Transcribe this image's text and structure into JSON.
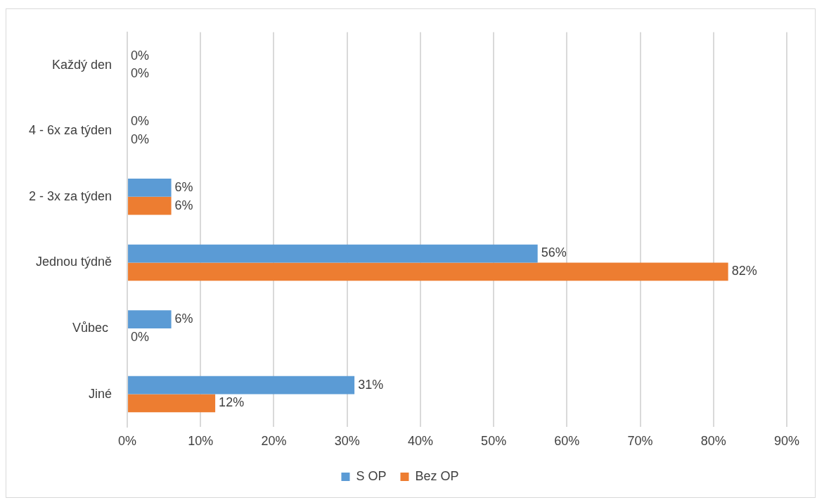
{
  "chart_data": {
    "type": "bar",
    "orientation": "horizontal",
    "categories": [
      "Každý den",
      "4 - 6x za týden",
      "2 - 3x za týden",
      "Jednou týdně",
      "Vůbec ",
      "Jiné"
    ],
    "series": [
      {
        "name": "S OP",
        "color": "#5b9bd5",
        "values": [
          0,
          0,
          6,
          56,
          6,
          31
        ],
        "value_labels": [
          "0%",
          "0%",
          "6%",
          "56%",
          "6%",
          "31%"
        ]
      },
      {
        "name": "Bez OP",
        "color": "#ed7d31",
        "values": [
          0,
          0,
          6,
          82,
          0,
          12
        ],
        "value_labels": [
          "0%",
          "0%",
          "6%",
          "82%",
          "0%",
          "12%"
        ]
      }
    ],
    "xlim": [
      0,
      90
    ],
    "xticks": [
      {
        "value": 0,
        "label": "0%"
      },
      {
        "value": 10,
        "label": "10%"
      },
      {
        "value": 20,
        "label": "20%"
      },
      {
        "value": 30,
        "label": "30%"
      },
      {
        "value": 40,
        "label": "40%"
      },
      {
        "value": 50,
        "label": "50%"
      },
      {
        "value": 60,
        "label": "60%"
      },
      {
        "value": 70,
        "label": "70%"
      },
      {
        "value": 80,
        "label": "80%"
      },
      {
        "value": 90,
        "label": "90%"
      }
    ],
    "grid": "x",
    "legend": "bottom"
  }
}
